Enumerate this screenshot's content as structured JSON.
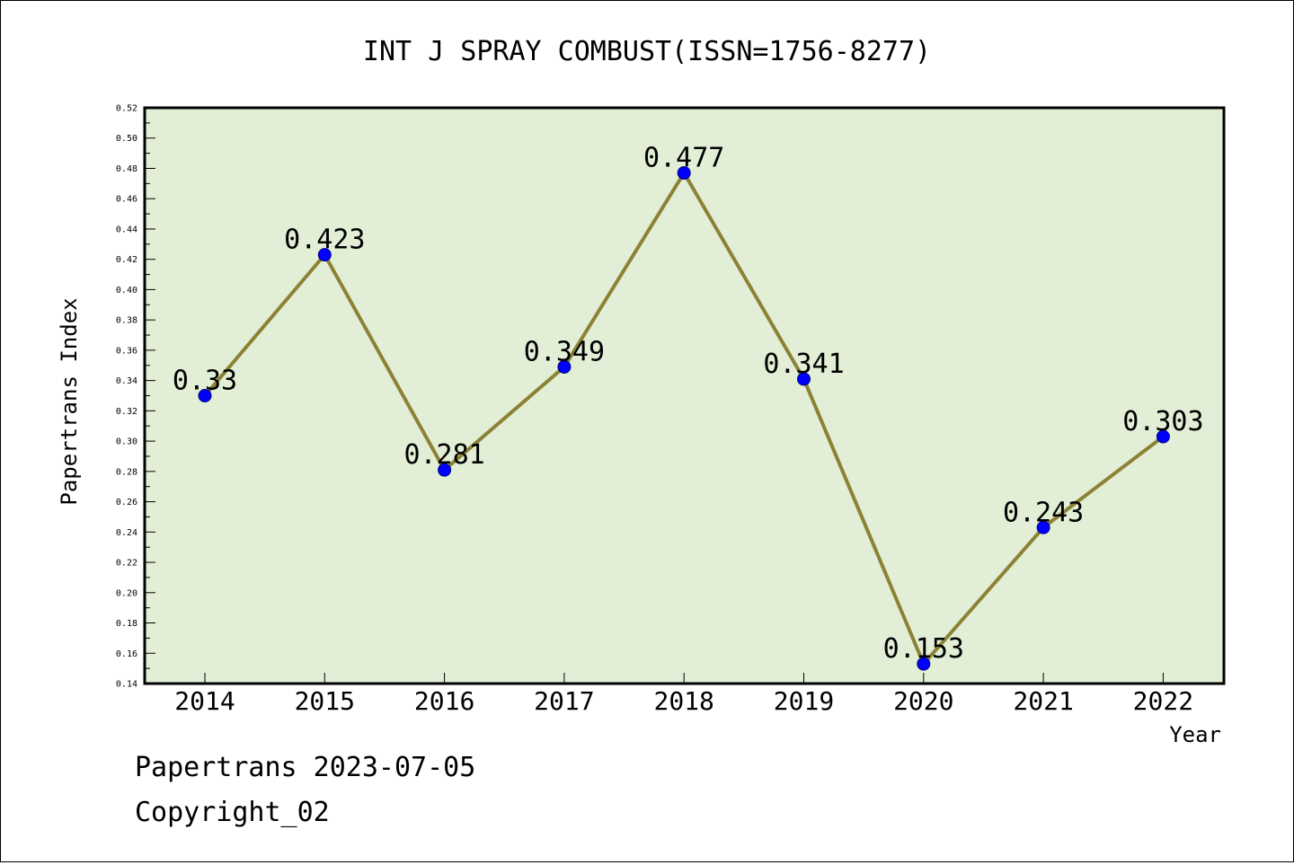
{
  "chart_data": {
    "type": "line",
    "title": "INT J SPRAY COMBUST(ISSN=1756-8277)",
    "xlabel": "Year",
    "ylabel": "Papertrans Index",
    "categories": [
      "2014",
      "2015",
      "2016",
      "2017",
      "2018",
      "2019",
      "2020",
      "2021",
      "2022"
    ],
    "values": [
      0.33,
      0.423,
      0.281,
      0.349,
      0.477,
      0.341,
      0.153,
      0.243,
      0.303
    ],
    "data_labels": [
      "0.33",
      "0.423",
      "0.281",
      "0.349",
      "0.477",
      "0.341",
      "0.153",
      "0.243",
      "0.303"
    ],
    "ylim": [
      0.14,
      0.52
    ],
    "yticks": [
      "0.14",
      "0.16",
      "0.18",
      "0.20",
      "0.22",
      "0.24",
      "0.26",
      "0.28",
      "0.30",
      "0.32",
      "0.34",
      "0.36",
      "0.38",
      "0.40",
      "0.42",
      "0.44",
      "0.46",
      "0.48",
      "0.50",
      "0.52"
    ],
    "grid": false,
    "legend": "none",
    "colors": {
      "plot_background": "#e2efd6",
      "line": "#8c8235",
      "marker": "#0000ff",
      "marker_edge": "#000080"
    }
  },
  "footer": {
    "line1": "Papertrans 2023-07-05",
    "line2": "Copyright_02"
  }
}
